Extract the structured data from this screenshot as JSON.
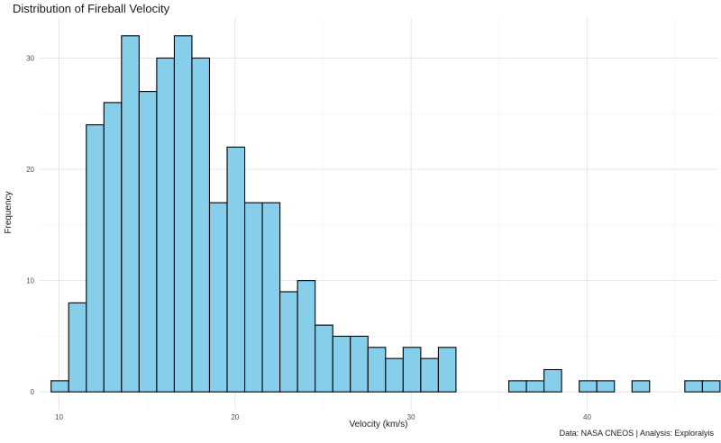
{
  "chart_data": {
    "type": "bar",
    "title": "Distribution of Fireball Velocity",
    "xlabel": "Velocity (km/s)",
    "ylabel": "Frequency",
    "caption": "Data: NASA CNEOS | Analysis: Exploralyis",
    "xlim": [
      8.9,
      47.4
    ],
    "ylim": [
      -1.6,
      33.6
    ],
    "x_ticks": [
      10,
      20,
      30,
      40
    ],
    "y_ticks": [
      0,
      10,
      20,
      30
    ],
    "grid": true,
    "bar_fill": "#87CEEB",
    "bar_stroke": "#000000",
    "bin_start": 9.55,
    "bin_width": 1.0,
    "values": [
      1,
      8,
      24,
      26,
      32,
      27,
      30,
      32,
      30,
      17,
      22,
      17,
      17,
      9,
      10,
      6,
      5,
      5,
      4,
      3,
      4,
      3,
      4,
      0,
      0,
      0,
      1,
      1,
      2,
      0,
      1,
      1,
      0,
      1,
      0,
      0,
      1,
      1
    ]
  }
}
